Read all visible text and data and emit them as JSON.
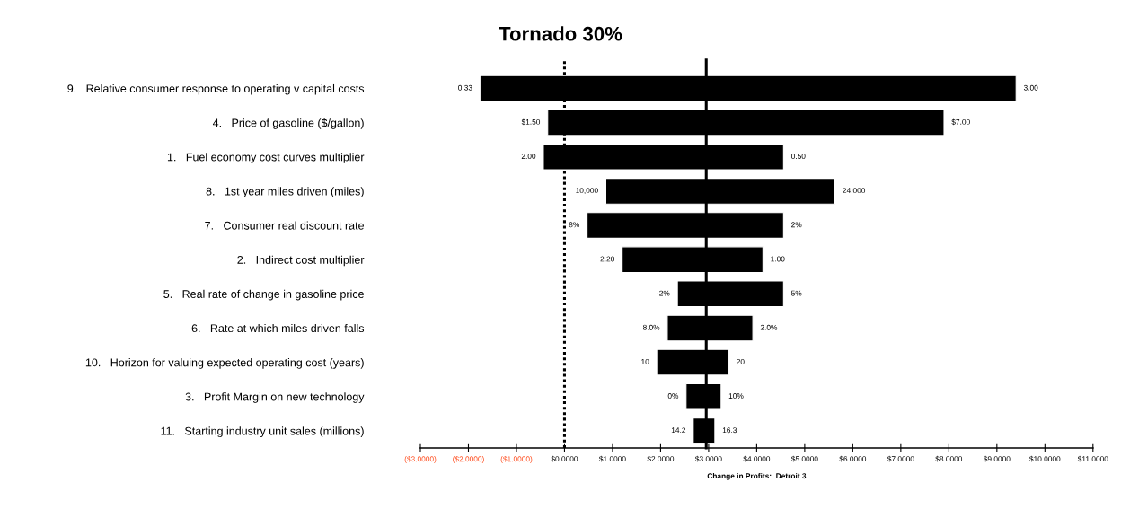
{
  "chart_data": {
    "type": "bar",
    "orientation": "horizontal",
    "title": "Tornado 30%",
    "xlabel": "Change in Profits:  Detroit 3",
    "categories": [
      "9.   Relative consumer response to operating v capital costs",
      "4.   Price of gasoline ($/gallon)",
      "1.   Fuel economy cost curves multiplier",
      "8.   1st year miles driven (miles)",
      "7.   Consumer real discount rate",
      "2.   Indirect cost multiplier",
      "5.   Real rate of change in gasoline price",
      "6.   Rate at which miles driven falls",
      "10.   Horizon for valuing expected operating cost (years)",
      "3.   Profit Margin on new technology",
      "11.   Starting industry unit sales (millions)"
    ],
    "base": [
      -1.76,
      -0.35,
      -0.44,
      0.86,
      0.47,
      1.2,
      2.35,
      2.14,
      1.92,
      2.53,
      2.68
    ],
    "values": [
      11.16,
      8.25,
      5.0,
      4.77,
      4.09,
      2.93,
      2.21,
      1.78,
      1.5,
      0.73,
      0.45
    ],
    "color": "#000000",
    "xlim": [
      -3,
      11
    ],
    "xticks": [
      {
        "value": -3,
        "label": "($3.0000)"
      },
      {
        "value": -2,
        "label": "($2.0000)"
      },
      {
        "value": -1,
        "label": "($1.0000)"
      },
      {
        "value": 0,
        "label": "$0.0000"
      },
      {
        "value": 1,
        "label": "$1.0000"
      },
      {
        "value": 2,
        "label": "$2.0000"
      },
      {
        "value": 3,
        "label": "$3.0000"
      },
      {
        "value": 4,
        "label": "$4.0000"
      },
      {
        "value": 5,
        "label": "$5.0000"
      },
      {
        "value": 6,
        "label": "$6.0000"
      },
      {
        "value": 7,
        "label": "$7.0000"
      },
      {
        "value": 8,
        "label": "$8.0000"
      },
      {
        "value": 9,
        "label": "$9.0000"
      },
      {
        "value": 10,
        "label": "$10.0000"
      },
      {
        "value": 11,
        "label": "$11.0000"
      }
    ],
    "ref_lines": [
      {
        "axis": "x",
        "value": 0,
        "line_style": "dotted",
        "color": "#000000"
      },
      {
        "axis": "x",
        "value": 2.95,
        "line_style": "solid",
        "color": "#000000"
      }
    ],
    "annotations": [
      {
        "text": "0.33",
        "x": -1.76,
        "y": "9.   Relative consumer response to operating v capital costs"
      },
      {
        "text": "3.00",
        "x": 9.4,
        "y": "9.   Relative consumer response to operating v capital costs"
      },
      {
        "text": "$1.50",
        "x": -0.35,
        "y": "4.   Price of gasoline ($/gallon)"
      },
      {
        "text": "$7.00",
        "x": 7.9,
        "y": "4.   Price of gasoline ($/gallon)"
      },
      {
        "text": "2.00",
        "x": -0.44,
        "y": "1.   Fuel economy cost curves multiplier"
      },
      {
        "text": "0.50",
        "x": 4.56,
        "y": "1.   Fuel economy cost curves multiplier"
      },
      {
        "text": "10,000",
        "x": 0.86,
        "y": "8.   1st year miles driven (miles)"
      },
      {
        "text": "24,000",
        "x": 5.63,
        "y": "8.   1st year miles driven (miles)"
      },
      {
        "text": "8%",
        "x": 0.47,
        "y": "7.   Consumer real discount rate"
      },
      {
        "text": "2%",
        "x": 4.56,
        "y": "7.   Consumer real discount rate"
      },
      {
        "text": "2.20",
        "x": 1.2,
        "y": "2.   Indirect cost multiplier"
      },
      {
        "text": "1.00",
        "x": 4.13,
        "y": "2.   Indirect cost multiplier"
      },
      {
        "text": "-2%",
        "x": 2.35,
        "y": "5.   Real rate of change in gasoline price"
      },
      {
        "text": "5%",
        "x": 4.56,
        "y": "5.   Real rate of change in gasoline price"
      },
      {
        "text": "8.0%",
        "x": 2.14,
        "y": "6.   Rate at which miles driven falls"
      },
      {
        "text": "2.0%",
        "x": 3.92,
        "y": "6.   Rate at which miles driven falls"
      },
      {
        "text": "10",
        "x": 1.92,
        "y": "10.   Horizon for valuing expected operating cost (years)"
      },
      {
        "text": "20",
        "x": 3.42,
        "y": "10.   Horizon for valuing expected operating cost (years)"
      },
      {
        "text": "0%",
        "x": 2.53,
        "y": "3.   Profit Margin on new technology"
      },
      {
        "text": "10%",
        "x": 3.26,
        "y": "3.   Profit Margin on new technology"
      },
      {
        "text": "14.2",
        "x": 2.68,
        "y": "11.   Starting industry unit sales (millions)"
      },
      {
        "text": "16.3",
        "x": 3.13,
        "y": "11.   Starting industry unit sales (millions)"
      }
    ],
    "grid": false
  }
}
